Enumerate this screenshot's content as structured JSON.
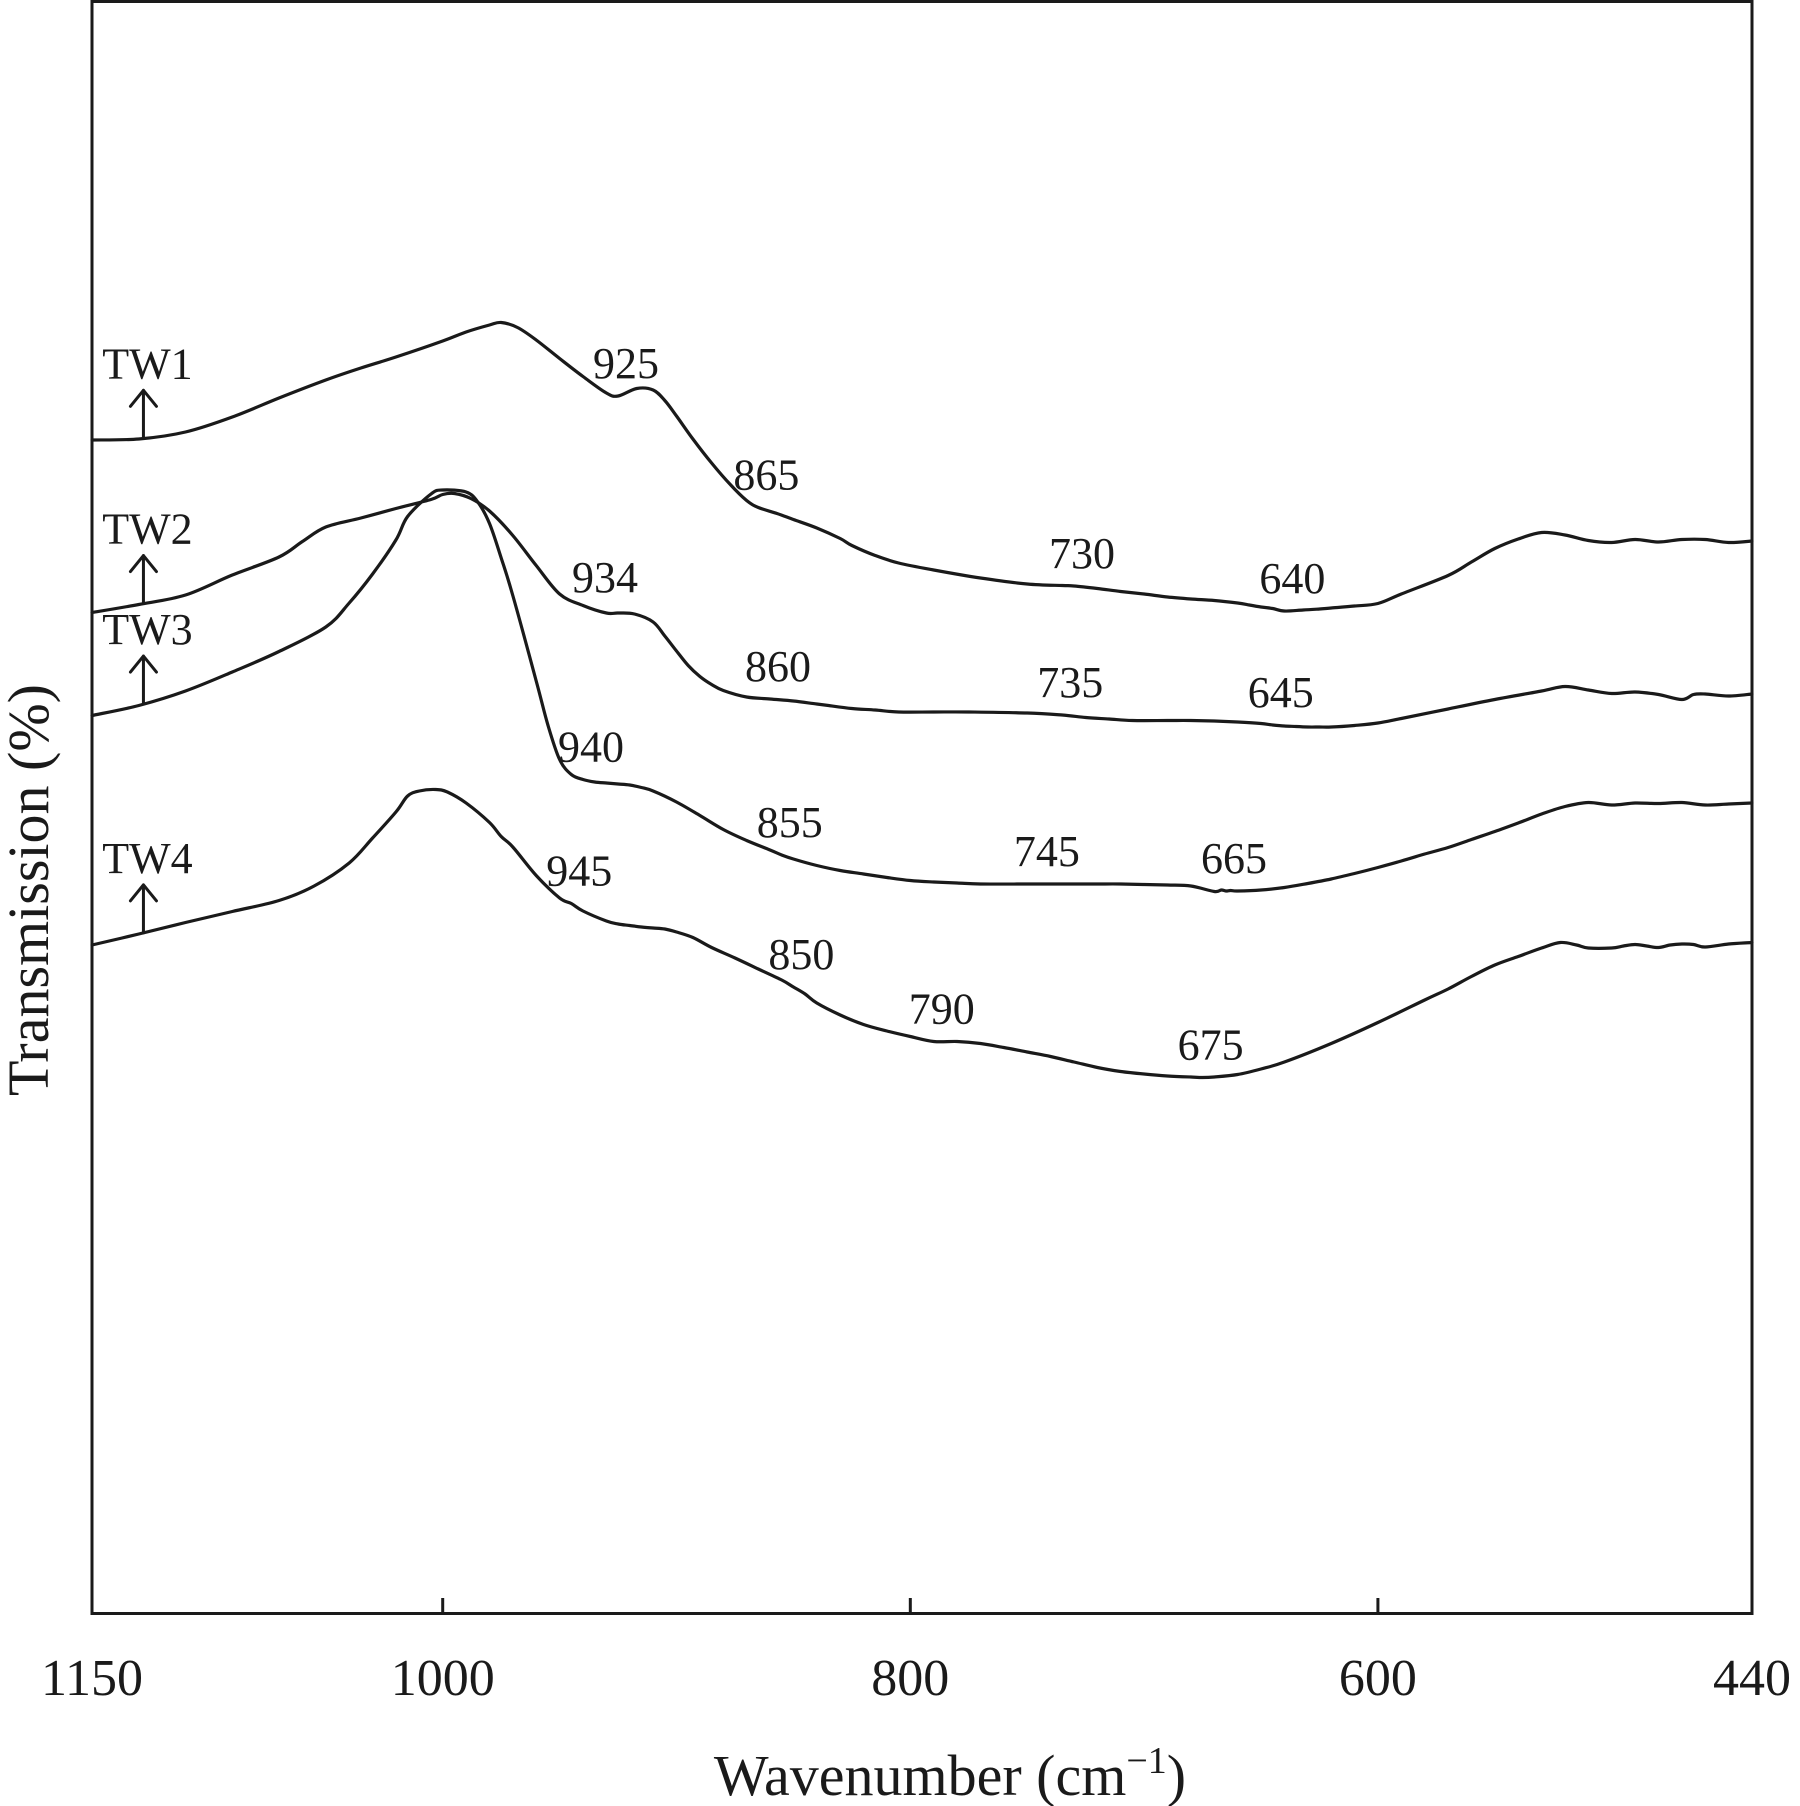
{
  "chart_data": {
    "type": "line",
    "xlabel": "Wavenumber (cm",
    "xlabel_sup": "−1",
    "xlabel_close": ")",
    "ylabel": "Transmission (%)",
    "x_reversed": true,
    "xlim": [
      1150,
      440
    ],
    "x_ticks": [
      1150,
      1000,
      800,
      600,
      440
    ],
    "x_tick_labels": [
      "1150",
      "1000",
      "800",
      "600",
      "440"
    ],
    "y_ticks_shown": false,
    "grid": false,
    "series": [
      {
        "name": "TW1",
        "x": [
          1150,
          1130,
          1110,
          1090,
          1070,
          1050,
          1035,
          1020,
          1000,
          990,
          980,
          975,
          968,
          960,
          950,
          940,
          930,
          925,
          917,
          910,
          905,
          900,
          893,
          885,
          877,
          870,
          865,
          857,
          850,
          840,
          830,
          825,
          815,
          805,
          790,
          770,
          750,
          735,
          730,
          720,
          710,
          700,
          690,
          680,
          670,
          660,
          655,
          650,
          645,
          640,
          632,
          625,
          620,
          610,
          600,
          590,
          570,
          560,
          550,
          540,
          530,
          520,
          510,
          500,
          490,
          480,
          470,
          460,
          450,
          440
        ],
        "y": [
          24.0,
          24.2,
          25.6,
          28.6,
          32.4,
          36.0,
          38.4,
          40.6,
          43.8,
          45.6,
          47.0,
          47.5,
          46.5,
          44.0,
          40.3,
          36.7,
          33.4,
          32.8,
          34.3,
          34.0,
          31.9,
          28.8,
          24.2,
          19.4,
          15.1,
          11.9,
          10.5,
          9.3,
          8.1,
          6.4,
          4.3,
          2.9,
          0.9,
          -0.6,
          -2.0,
          -3.6,
          -4.8,
          -5.1,
          -5.2,
          -5.7,
          -6.3,
          -6.8,
          -7.4,
          -7.8,
          -8.1,
          -8.6,
          -9.0,
          -9.4,
          -9.7,
          -10.2,
          -10.0,
          -9.8,
          -9.6,
          -9.2,
          -8.7,
          -6.8,
          -3.1,
          -0.4,
          2.3,
          4.2,
          5.5,
          5.0,
          3.9,
          3.5,
          4.1,
          3.6,
          4.1,
          4.1,
          3.5,
          3.8
        ]
      },
      {
        "name": "TW2",
        "x": [
          1150,
          1130,
          1110,
          1090,
          1070,
          1060,
          1050,
          1035,
          1020,
          1005,
          1000,
          995,
          988,
          980,
          970,
          960,
          950,
          940,
          930,
          925,
          918,
          910,
          905,
          900,
          895,
          890,
          885,
          880,
          870,
          860,
          850,
          840,
          835,
          825,
          815,
          805,
          790,
          775,
          750,
          735,
          725,
          715,
          705,
          690,
          680,
          670,
          660,
          650,
          645,
          640,
          635,
          630,
          625,
          620,
          610,
          600,
          590,
          570,
          550,
          530,
          520,
          510,
          500,
          490,
          480,
          470,
          465,
          460,
          450,
          440
        ],
        "y": [
          23.5,
          25.1,
          27.0,
          31.0,
          34.6,
          37.7,
          40.6,
          42.4,
          44.3,
          46.1,
          47.1,
          47.3,
          46.3,
          43.8,
          38.9,
          32.9,
          27.2,
          24.9,
          23.4,
          23.4,
          23.2,
          21.6,
          18.8,
          15.8,
          12.9,
          10.7,
          9.1,
          7.9,
          6.6,
          6.2,
          5.8,
          5.2,
          4.9,
          4.3,
          4.0,
          3.6,
          3.6,
          3.6,
          3.4,
          3.0,
          2.5,
          2.2,
          1.9,
          1.9,
          1.9,
          1.8,
          1.6,
          1.3,
          1.0,
          0.8,
          0.7,
          0.6,
          0.6,
          0.6,
          0.9,
          1.4,
          2.3,
          4.2,
          6.1,
          7.8,
          8.7,
          8.0,
          7.3,
          7.6,
          7.1,
          6.1,
          7.1,
          7.2,
          6.8,
          7.2
        ]
      },
      {
        "name": "TW3",
        "x": [
          1150,
          1130,
          1110,
          1090,
          1070,
          1050,
          1040,
          1030,
          1020,
          1015,
          1005,
          1000,
          990,
          985,
          980,
          975,
          970,
          960,
          955,
          950,
          945,
          940,
          935,
          930,
          925,
          920,
          915,
          910,
          900,
          890,
          880,
          870,
          860,
          855,
          850,
          840,
          830,
          820,
          810,
          800,
          790,
          780,
          770,
          750,
          740,
          730,
          720,
          710,
          700,
          690,
          680,
          670,
          667,
          665,
          663,
          660,
          650,
          640,
          630,
          620,
          610,
          600,
          590,
          580,
          570,
          560,
          550,
          540,
          530,
          520,
          510,
          500,
          490,
          480,
          470,
          460,
          450,
          440
        ],
        "y": [
          36.9,
          38.9,
          41.8,
          45.6,
          49.7,
          54.6,
          59.4,
          65.2,
          72.0,
          76.7,
          81.2,
          82.0,
          81.6,
          79.6,
          75.3,
          68.4,
          60.9,
          43.8,
          35.0,
          28.1,
          25.1,
          24.1,
          23.6,
          23.4,
          23.2,
          23.0,
          22.5,
          21.8,
          19.6,
          16.9,
          14.1,
          11.9,
          10.0,
          9.0,
          8.2,
          6.9,
          5.9,
          5.2,
          4.5,
          3.9,
          3.6,
          3.4,
          3.2,
          3.2,
          3.2,
          3.2,
          3.2,
          3.2,
          3.1,
          3.0,
          2.8,
          1.7,
          2.0,
          1.8,
          1.9,
          1.8,
          2.0,
          2.5,
          3.3,
          4.2,
          5.3,
          6.5,
          7.8,
          9.2,
          10.5,
          12.1,
          13.7,
          15.4,
          17.2,
          18.7,
          19.5,
          19.0,
          19.4,
          19.3,
          19.5,
          19.0,
          19.2,
          19.4
        ]
      },
      {
        "name": "TW4",
        "x": [
          1150,
          1130,
          1110,
          1090,
          1070,
          1055,
          1040,
          1030,
          1020,
          1015,
          1010,
          1003,
          998,
          990,
          980,
          975,
          970,
          960,
          950,
          945,
          940,
          930,
          925,
          920,
          915,
          910,
          905,
          900,
          893,
          885,
          875,
          865,
          855,
          850,
          845,
          840,
          830,
          820,
          810,
          800,
          790,
          780,
          770,
          760,
          750,
          740,
          730,
          720,
          710,
          700,
          690,
          680,
          675,
          670,
          660,
          650,
          640,
          620,
          600,
          580,
          570,
          560,
          550,
          540,
          530,
          522,
          515,
          510,
          500,
          495,
          490,
          485,
          480,
          475,
          470,
          465,
          460,
          450,
          440
        ],
        "y": [
          25.0,
          27.2,
          29.5,
          31.7,
          33.9,
          36.8,
          41.4,
          46.4,
          51.6,
          54.8,
          55.8,
          56.1,
          55.6,
          53.4,
          49.5,
          46.7,
          44.6,
          38.9,
          34.4,
          33.3,
          31.8,
          29.8,
          29.2,
          28.9,
          28.6,
          28.4,
          28.2,
          27.6,
          26.5,
          24.5,
          22.4,
          20.2,
          18.0,
          16.6,
          15.2,
          13.4,
          11.0,
          9.1,
          7.8,
          6.7,
          5.7,
          5.7,
          5.3,
          4.5,
          3.6,
          2.7,
          1.6,
          0.5,
          -0.3,
          -0.8,
          -1.2,
          -1.4,
          -1.5,
          -1.4,
          -0.9,
          0.2,
          1.6,
          5.3,
          9.5,
          14.0,
          16.2,
          18.7,
          21.0,
          22.7,
          24.4,
          25.5,
          25.0,
          24.4,
          24.4,
          24.8,
          25.1,
          24.8,
          24.5,
          25.0,
          25.2,
          25.1,
          24.6,
          25.2,
          25.5
        ]
      }
    ],
    "series_offsets": [
      0,
      0,
      0,
      0
    ],
    "peak_labels": [
      {
        "series": "TW1",
        "text": "925"
      },
      {
        "series": "TW1",
        "text": "865"
      },
      {
        "series": "TW1",
        "text": "730"
      },
      {
        "series": "TW1",
        "text": "640"
      },
      {
        "series": "TW2",
        "text": "934"
      },
      {
        "series": "TW2",
        "text": "860"
      },
      {
        "series": "TW2",
        "text": "735"
      },
      {
        "series": "TW2",
        "text": "645"
      },
      {
        "series": "TW3",
        "text": "940"
      },
      {
        "series": "TW3",
        "text": "855"
      },
      {
        "series": "TW3",
        "text": "745"
      },
      {
        "series": "TW3",
        "text": "665"
      },
      {
        "series": "TW4",
        "text": "945"
      },
      {
        "series": "TW4",
        "text": "850"
      },
      {
        "series": "TW4",
        "text": "790"
      },
      {
        "series": "TW4",
        "text": "675"
      }
    ]
  }
}
